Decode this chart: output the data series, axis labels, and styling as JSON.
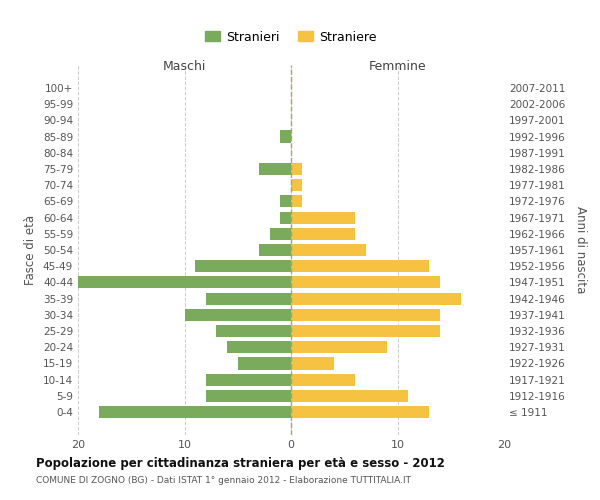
{
  "age_groups": [
    "100+",
    "95-99",
    "90-94",
    "85-89",
    "80-84",
    "75-79",
    "70-74",
    "65-69",
    "60-64",
    "55-59",
    "50-54",
    "45-49",
    "40-44",
    "35-39",
    "30-34",
    "25-29",
    "20-24",
    "15-19",
    "10-14",
    "5-9",
    "0-4"
  ],
  "birth_years": [
    "≤ 1911",
    "1912-1916",
    "1917-1921",
    "1922-1926",
    "1927-1931",
    "1932-1936",
    "1937-1941",
    "1942-1946",
    "1947-1951",
    "1952-1956",
    "1957-1961",
    "1962-1966",
    "1967-1971",
    "1972-1976",
    "1977-1981",
    "1982-1986",
    "1987-1991",
    "1992-1996",
    "1997-2001",
    "2002-2006",
    "2007-2011"
  ],
  "maschi": [
    0,
    0,
    0,
    1,
    0,
    3,
    0,
    1,
    1,
    2,
    3,
    9,
    20,
    8,
    10,
    7,
    6,
    5,
    8,
    8,
    18
  ],
  "femmine": [
    0,
    0,
    0,
    0,
    0,
    1,
    1,
    1,
    6,
    6,
    7,
    13,
    14,
    16,
    14,
    14,
    9,
    4,
    6,
    11,
    13
  ],
  "maschi_color": "#7aaa5c",
  "femmine_color": "#f5c242",
  "title": "Popolazione per cittadinanza straniera per età e sesso - 2012",
  "subtitle": "COMUNE DI ZOGNO (BG) - Dati ISTAT 1° gennaio 2012 - Elaborazione TUTTITALIA.IT",
  "xlabel_left": "Maschi",
  "xlabel_right": "Femmine",
  "ylabel_left": "Fasce di età",
  "ylabel_right": "Anni di nascita",
  "xlim": 20,
  "legend_stranieri": "Stranieri",
  "legend_straniere": "Straniere",
  "background_color": "#ffffff",
  "grid_color": "#cccccc"
}
